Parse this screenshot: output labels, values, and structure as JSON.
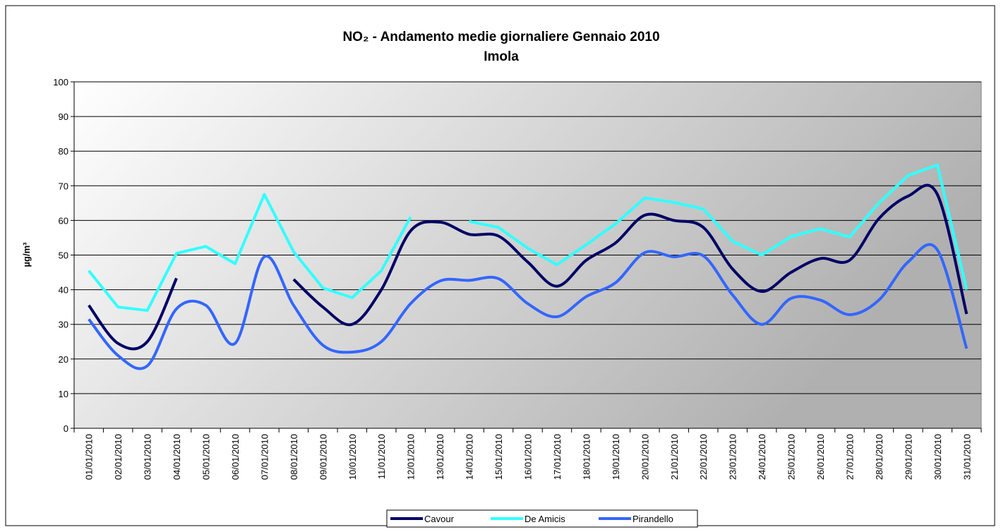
{
  "chart_data": {
    "type": "line",
    "title": "NO₂ - Andamento medie giornaliere Gennaio 2010",
    "subtitle": "Imola",
    "y_label": "µg/m³",
    "categories": [
      "01/01/2010",
      "02/01/2010",
      "03/01/2010",
      "04/01/2010",
      "05/01/2010",
      "06/01/2010",
      "07/01/2010",
      "08/01/2010",
      "09/01/2010",
      "10/01/2010",
      "11/01/2010",
      "12/01/2010",
      "13/01/2010",
      "14/01/2010",
      "15/01/2010",
      "16/01/2010",
      "17/01/2010",
      "18/01/2010",
      "19/01/2010",
      "20/01/2010",
      "21/01/2010",
      "22/01/2010",
      "23/01/2010",
      "24/01/2010",
      "25/01/2010",
      "26/01/2010",
      "27/01/2010",
      "28/01/2010",
      "29/01/2010",
      "30/01/2010",
      "31/01/2010"
    ],
    "series": [
      {
        "name": "Cavour",
        "color": "#000066",
        "smooth": true,
        "values": [
          35.5,
          24.5,
          25,
          43.3,
          null,
          null,
          null,
          43,
          35,
          30,
          40,
          57,
          59.5,
          56,
          55.5,
          48,
          41,
          48.5,
          53.5,
          61.5,
          60,
          58,
          46,
          39.5,
          45,
          49,
          48.5,
          60.5,
          67,
          67.5,
          33
        ]
      },
      {
        "name": "De Amicis",
        "color": "#33FFFF",
        "smooth": false,
        "values": [
          45.5,
          35,
          34,
          50.5,
          52.5,
          47.5,
          67.5,
          51,
          40.5,
          37.7,
          45.5,
          61,
          null,
          59.7,
          58,
          52,
          47.2,
          53,
          59,
          66.5,
          65.2,
          63.3,
          54,
          50,
          55.3,
          57.6,
          55.2,
          65,
          73,
          76,
          40
        ]
      },
      {
        "name": "Pirandello",
        "color": "#3366FF",
        "smooth": true,
        "values": [
          31.5,
          21,
          18,
          34.5,
          35.5,
          24.5,
          49.5,
          35.5,
          24,
          22,
          25,
          36,
          42.5,
          42.7,
          43.2,
          36,
          32.2,
          38,
          42,
          50.7,
          49.5,
          49.8,
          38.5,
          30,
          37.5,
          37,
          32.8,
          37,
          48,
          51.5,
          23
        ]
      }
    ],
    "ylim": [
      0,
      100
    ],
    "yticks": [
      0,
      10,
      20,
      30,
      40,
      50,
      60,
      70,
      80,
      90,
      100
    ],
    "grid": true,
    "legend": "bottom"
  }
}
